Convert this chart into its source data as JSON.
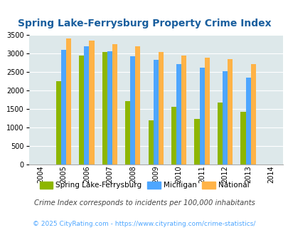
{
  "title": "Spring Lake-Ferrysburg Property Crime Index",
  "all_years": [
    2004,
    2005,
    2006,
    2007,
    2008,
    2009,
    2010,
    2011,
    2012,
    2013,
    2014
  ],
  "bar_years": [
    2005,
    2006,
    2007,
    2008,
    2009,
    2010,
    2011,
    2012,
    2013
  ],
  "spring_lake": [
    2250,
    2950,
    3050,
    1720,
    1200,
    1570,
    1240,
    1680,
    1420
  ],
  "michigan": [
    3100,
    3200,
    3060,
    2940,
    2830,
    2710,
    2620,
    2530,
    2350
  ],
  "national": [
    3420,
    3350,
    3260,
    3200,
    3040,
    2960,
    2900,
    2860,
    2720
  ],
  "spring_lake_color": "#8db600",
  "michigan_color": "#4da6ff",
  "national_color": "#ffb347",
  "bg_color": "#dde8ea",
  "ylim": [
    0,
    3500
  ],
  "yticks": [
    0,
    500,
    1000,
    1500,
    2000,
    2500,
    3000,
    3500
  ],
  "legend_labels": [
    "Spring Lake-Ferrysburg",
    "Michigan",
    "National"
  ],
  "footnote1": "Crime Index corresponds to incidents per 100,000 inhabitants",
  "footnote2": "© 2025 CityRating.com - https://www.cityrating.com/crime-statistics/",
  "title_color": "#1a5f9e",
  "footnote1_color": "#444444",
  "footnote2_color": "#4da6ff"
}
